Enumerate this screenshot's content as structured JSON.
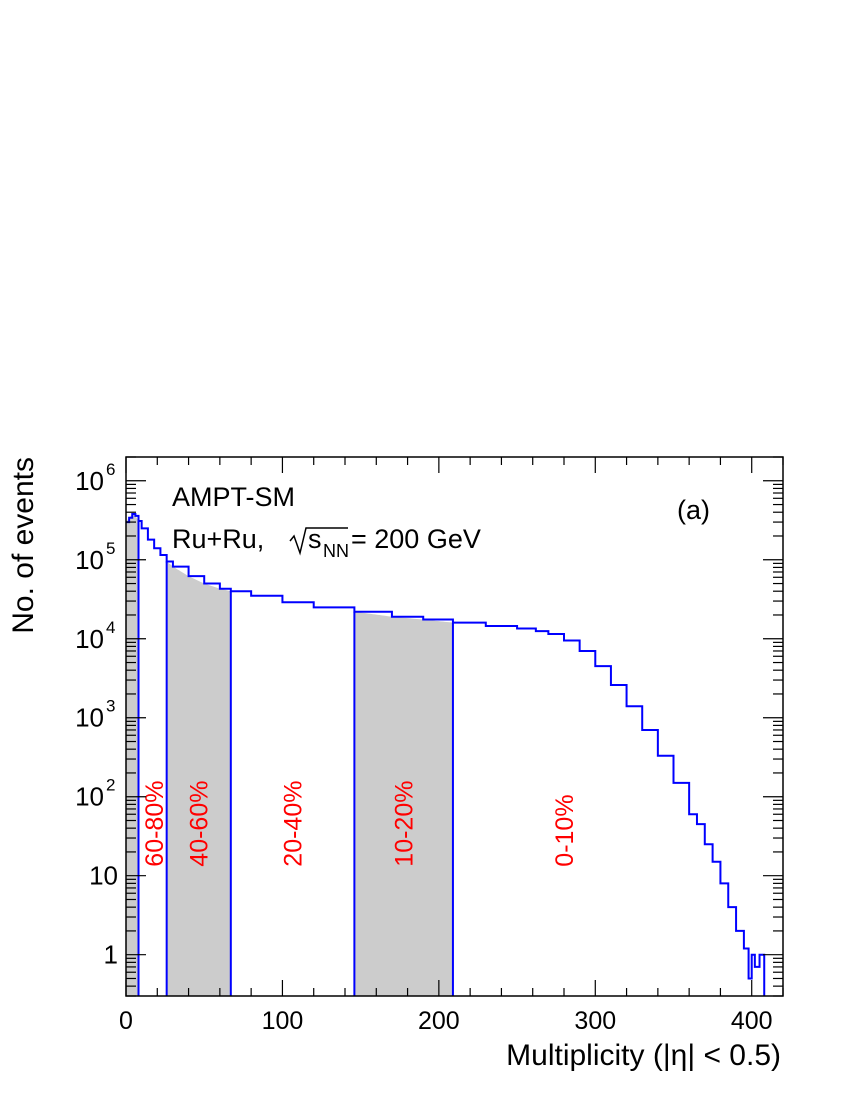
{
  "chart_data": {
    "type": "histogram",
    "title_line1": "AMPT-SM",
    "title_line2_prefix": "Ru+Ru, ",
    "title_line2_sqrt_base": "s",
    "title_line2_sqrt_sub": "NN",
    "title_line2_suffix": " = 200 GeV",
    "panel_label": "(a)",
    "xlabel": "Multiplicity (|η| < 0.5)",
    "ylabel": "No. of events",
    "xlim": [
      0,
      420
    ],
    "ylim": [
      0.3,
      2000000
    ],
    "yscale": "log",
    "xticks": [
      0,
      100,
      200,
      300,
      400
    ],
    "yticks": [
      {
        "value": 1,
        "base": "1",
        "exp": ""
      },
      {
        "value": 10,
        "base": "10",
        "exp": ""
      },
      {
        "value": 100,
        "base": "10",
        "exp": "2"
      },
      {
        "value": 1000,
        "base": "10",
        "exp": "3"
      },
      {
        "value": 10000,
        "base": "10",
        "exp": "4"
      },
      {
        "value": 100000,
        "base": "10",
        "exp": "5"
      },
      {
        "value": 1000000,
        "base": "10",
        "exp": "6"
      }
    ],
    "series": [
      {
        "color": "#0000ff",
        "x": [
          0,
          2,
          4,
          6,
          8,
          10,
          14,
          18,
          22,
          26,
          30,
          40,
          50,
          60,
          67,
          80,
          100,
          120,
          146,
          170,
          190,
          209,
          230,
          250,
          262,
          270,
          280,
          290,
          300,
          310,
          320,
          330,
          340,
          350,
          360,
          365,
          370,
          375,
          380,
          385,
          390,
          395,
          398,
          400,
          402,
          405,
          408
        ],
        "y": [
          300000,
          340000,
          380000,
          360000,
          310000,
          250000,
          180000,
          140000,
          115000,
          95000,
          82000,
          62000,
          50000,
          43000,
          40000,
          35000,
          29000,
          25000,
          22000,
          19000,
          17500,
          16000,
          14500,
          13500,
          12500,
          11500,
          9500,
          7000,
          4500,
          2600,
          1400,
          700,
          330,
          150,
          60,
          45,
          25,
          15,
          8,
          4,
          2,
          1.2,
          0.5,
          1,
          0.7,
          1,
          0.3
        ]
      }
    ],
    "shaded_bands": [
      {
        "label": "60-80%",
        "x_start": 0,
        "x_end": 8,
        "shaded": true
      },
      {
        "label": "40-60%",
        "x_start": 26,
        "x_end": 67,
        "shaded": true
      },
      {
        "label": "20-40%",
        "x_start": 67,
        "x_end": 146,
        "shaded": false
      },
      {
        "label": "10-20%",
        "x_start": 146,
        "x_end": 209,
        "shaded": true
      },
      {
        "label": "0-10%",
        "x_start": 209,
        "x_end": 420,
        "shaded": false
      }
    ],
    "band_edges": [
      8,
      26,
      67,
      146,
      209
    ],
    "colors": {
      "line": "#0000ff",
      "band_fill": "#cccccc",
      "band_label": "#ff0000"
    }
  }
}
